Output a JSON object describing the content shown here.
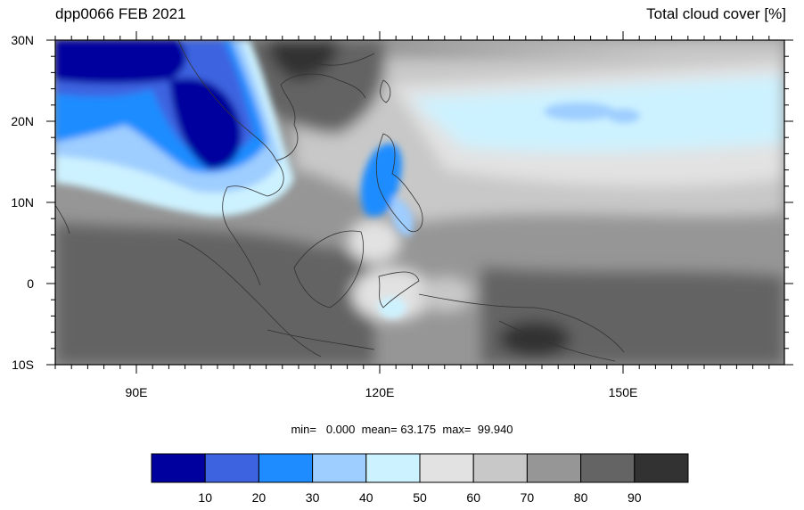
{
  "title_left": "dpp0066 FEB 2021",
  "title_right": "Total cloud cover [%]",
  "lat_labels": [
    "30N",
    "20N",
    "10N",
    "0",
    "10S"
  ],
  "lon_labels": [
    "90E",
    "120E",
    "150E"
  ],
  "stats": {
    "min_label": "min=",
    "min_value": "0.000",
    "mean_label": "mean=",
    "mean_value": "63.175",
    "max_label": "max=",
    "max_value": "99.940"
  },
  "colorbar": {
    "colors": [
      "#00009e",
      "#3e63e0",
      "#1e8cff",
      "#9ecdff",
      "#cdf2ff",
      "#e2e2e2",
      "#c8c8c8",
      "#969696",
      "#646464",
      "#323232"
    ],
    "tick_labels": [
      "10",
      "20",
      "30",
      "40",
      "50",
      "60",
      "70",
      "80",
      "90"
    ]
  }
}
